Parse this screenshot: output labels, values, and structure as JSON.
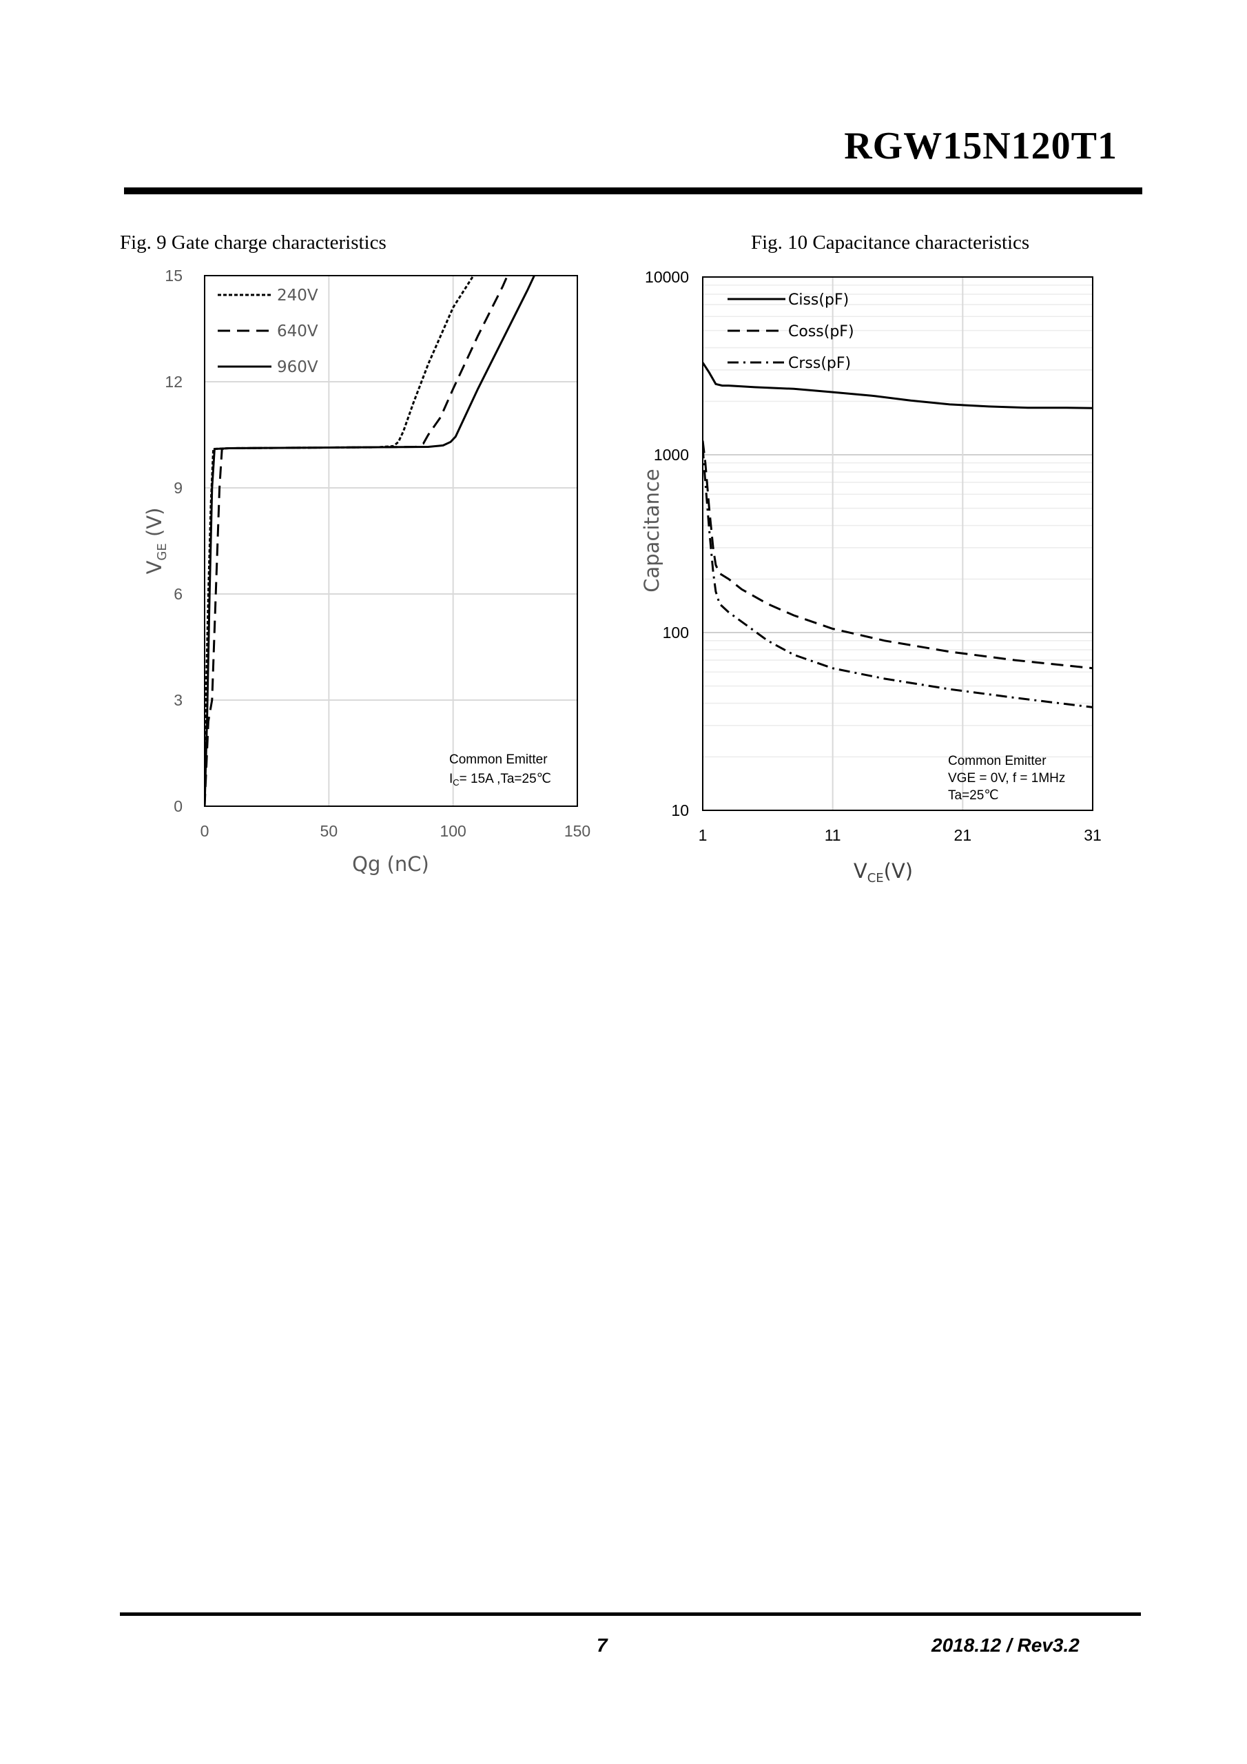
{
  "header": {
    "part_number": "RGW15N120T1"
  },
  "footer": {
    "page": "7",
    "revision": "2018.12 / Rev3.2"
  },
  "chart_data": [
    {
      "id": "fig9",
      "type": "line",
      "caption": "Fig. 9  Gate charge characteristics",
      "xlabel": "Qg (nC)",
      "ylabel_main": "V",
      "ylabel_sub": "GE",
      "ylabel_suffix": " (V)",
      "xlim": [
        0,
        150
      ],
      "ylim": [
        0,
        15
      ],
      "xticks": [
        0,
        50,
        100,
        150
      ],
      "yticks": [
        0,
        3,
        6,
        9,
        12,
        15
      ],
      "grid": true,
      "legend_position": "top-left",
      "annotation": [
        "Common Emitter",
        "I",
        "C",
        "= 15A ,Ta=25℃"
      ],
      "series": [
        {
          "name": "240V",
          "style": "dotted",
          "x": [
            0,
            0.5,
            1.5,
            2.5,
            3.5,
            10,
            30,
            50,
            70,
            76,
            78,
            80,
            84,
            90,
            100,
            110,
            115
          ],
          "y": [
            0,
            3,
            6,
            8.5,
            10.1,
            10.12,
            10.13,
            10.14,
            10.15,
            10.18,
            10.3,
            10.6,
            11.4,
            12.5,
            14.1,
            15.2,
            15.5
          ]
        },
        {
          "name": "640V",
          "style": "dashed",
          "x": [
            0,
            1.5,
            3,
            4.5,
            6,
            7,
            10,
            30,
            50,
            70,
            85,
            88,
            90,
            95,
            100,
            110,
            120,
            125
          ],
          "y": [
            0,
            2.4,
            3,
            6,
            9,
            10.1,
            10.12,
            10.13,
            10.14,
            10.15,
            10.16,
            10.25,
            10.5,
            11.0,
            11.8,
            13.3,
            14.7,
            15.5
          ]
        },
        {
          "name": "960V",
          "style": "solid",
          "x": [
            0,
            1,
            2,
            3,
            4,
            10,
            30,
            50,
            70,
            90,
            96,
            99,
            101,
            104,
            110,
            120,
            130,
            136
          ],
          "y": [
            0,
            2.5,
            6,
            9,
            10.1,
            10.12,
            10.13,
            10.14,
            10.15,
            10.16,
            10.2,
            10.3,
            10.45,
            10.9,
            11.8,
            13.2,
            14.6,
            15.5
          ]
        }
      ]
    },
    {
      "id": "fig10",
      "type": "line",
      "caption": "Fig. 10  Capacitance characteristics",
      "xlabel_main": "V",
      "xlabel_sub": "CE",
      "xlabel_suffix": "(V)",
      "ylabel": "Capacitance",
      "xlim": [
        1,
        31
      ],
      "ylim": [
        10,
        10000
      ],
      "yscale": "log",
      "xticks": [
        1,
        11,
        21,
        31
      ],
      "yticks": [
        10,
        100,
        1000,
        10000
      ],
      "grid": true,
      "legend_position": "top-left",
      "annotation": [
        "Common Emitter",
        "VGE = 0V, f = 1MHz",
        " Ta=25℃"
      ],
      "series": [
        {
          "name": "Ciss(pF)",
          "style": "solid",
          "x": [
            1,
            1.5,
            2,
            2.5,
            3,
            5,
            8,
            11,
            14,
            17,
            20,
            23,
            26,
            29,
            31
          ],
          "y": [
            3300,
            2900,
            2500,
            2450,
            2450,
            2400,
            2350,
            2250,
            2150,
            2020,
            1920,
            1870,
            1840,
            1840,
            1830
          ]
        },
        {
          "name": "Coss(pF)",
          "style": "dashed",
          "x": [
            1,
            1.2,
            1.5,
            1.8,
            2,
            2.3,
            3,
            4,
            6,
            8,
            11,
            15,
            20,
            25,
            31
          ],
          "y": [
            1200,
            900,
            500,
            300,
            240,
            215,
            200,
            175,
            145,
            125,
            105,
            90,
            78,
            70,
            63
          ]
        },
        {
          "name": "Crss(pF)",
          "style": "dashdot",
          "x": [
            1,
            1.2,
            1.5,
            1.8,
            2,
            2.3,
            3,
            4,
            6,
            8,
            11,
            15,
            20,
            25,
            31
          ],
          "y": [
            1100,
            700,
            380,
            220,
            170,
            145,
            130,
            115,
            90,
            75,
            63,
            55,
            48,
            43,
            38
          ]
        }
      ]
    }
  ]
}
